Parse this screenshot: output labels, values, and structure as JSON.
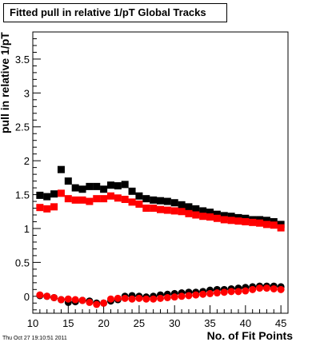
{
  "chart_data": {
    "type": "scatter",
    "title": "Fitted pull in relative 1/pT  Global Tracks",
    "xlabel": "No. of Fit Points",
    "ylabel": "pull in relative 1/pT",
    "xlim": [
      10,
      46
    ],
    "ylim": [
      -0.25,
      3.9
    ],
    "xticks": [
      "10",
      "15",
      "20",
      "25",
      "30",
      "35",
      "40",
      "45"
    ],
    "yticks": [
      "0",
      "0.5",
      "1",
      "1.5",
      "2",
      "2.5",
      "3",
      "3.5"
    ],
    "grid": false,
    "x": [
      11,
      12,
      13,
      14,
      15,
      16,
      17,
      18,
      19,
      20,
      21,
      22,
      23,
      24,
      25,
      26,
      27,
      28,
      29,
      30,
      31,
      32,
      33,
      34,
      35,
      36,
      37,
      38,
      39,
      40,
      41,
      42,
      43,
      44,
      45
    ],
    "series": [
      {
        "color": "#000000",
        "marker": "square",
        "values": [
          1.49,
          1.47,
          1.51,
          1.87,
          1.7,
          1.6,
          1.58,
          1.62,
          1.62,
          1.58,
          1.64,
          1.63,
          1.65,
          1.55,
          1.48,
          1.44,
          1.42,
          1.41,
          1.4,
          1.38,
          1.35,
          1.32,
          1.29,
          1.26,
          1.24,
          1.21,
          1.19,
          1.18,
          1.16,
          1.15,
          1.13,
          1.13,
          1.12,
          1.1,
          1.06
        ]
      },
      {
        "color": "#ff0000",
        "marker": "square",
        "values": [
          1.31,
          1.29,
          1.32,
          1.52,
          1.44,
          1.42,
          1.42,
          1.4,
          1.44,
          1.44,
          1.48,
          1.45,
          1.43,
          1.39,
          1.36,
          1.3,
          1.3,
          1.28,
          1.27,
          1.26,
          1.25,
          1.22,
          1.2,
          1.18,
          1.17,
          1.15,
          1.13,
          1.12,
          1.11,
          1.1,
          1.09,
          1.08,
          1.06,
          1.05,
          1.01
        ]
      },
      {
        "color": "#000000",
        "marker": "circle",
        "values": [
          0.01,
          0.0,
          -0.02,
          -0.05,
          -0.09,
          -0.08,
          -0.06,
          -0.07,
          -0.1,
          -0.1,
          -0.07,
          -0.05,
          0.0,
          0.01,
          0.0,
          -0.01,
          0.0,
          0.02,
          0.03,
          0.04,
          0.05,
          0.06,
          0.06,
          0.07,
          0.09,
          0.1,
          0.1,
          0.11,
          0.12,
          0.13,
          0.14,
          0.15,
          0.15,
          0.15,
          0.14
        ]
      },
      {
        "color": "#ff0000",
        "marker": "circle",
        "values": [
          0.02,
          0.0,
          -0.02,
          -0.05,
          -0.04,
          -0.05,
          -0.06,
          -0.09,
          -0.12,
          -0.1,
          -0.04,
          -0.03,
          -0.03,
          -0.04,
          -0.03,
          -0.04,
          -0.04,
          -0.03,
          -0.02,
          -0.01,
          0.0,
          0.01,
          0.02,
          0.03,
          0.04,
          0.05,
          0.06,
          0.07,
          0.07,
          0.08,
          0.1,
          0.12,
          0.12,
          0.11,
          0.1
        ]
      }
    ]
  },
  "footer": {
    "timestamp": "Thu Oct 27 19:10:51 2011"
  }
}
